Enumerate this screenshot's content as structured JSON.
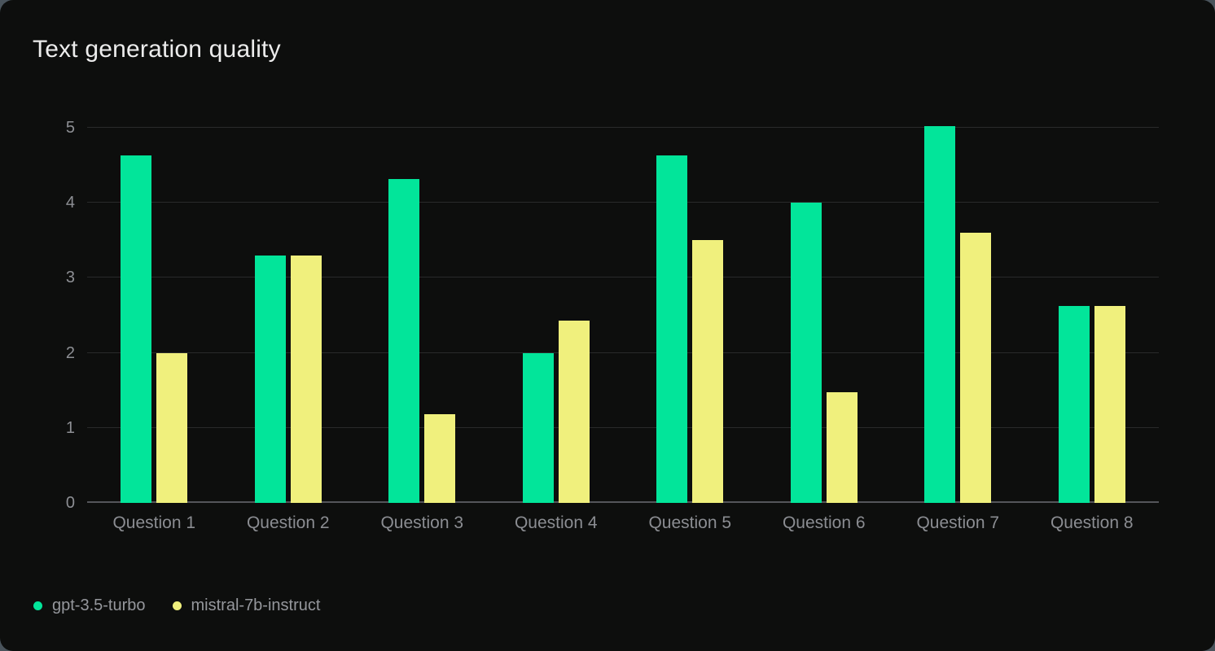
{
  "title": "Text generation quality",
  "colors": {
    "card_background": "#0d0e0d",
    "page_background": "#4a545c",
    "gridline": "#292a2a",
    "baseline": "#54555a",
    "axis_text": "#8d8f94",
    "title_text": "#ececec",
    "legend_text": "#95979c"
  },
  "chart_data": {
    "type": "bar",
    "title": "Text generation quality",
    "categories": [
      "Question 1",
      "Question 2",
      "Question 3",
      "Question 4",
      "Question 5",
      "Question 6",
      "Question 7",
      "Question 8"
    ],
    "series": [
      {
        "name": "gpt-3.5-turbo",
        "color": "#02e59a",
        "values": [
          4.63,
          3.3,
          4.32,
          2.0,
          4.63,
          4.0,
          5.02,
          2.63
        ]
      },
      {
        "name": "mistral-7b-instruct",
        "color": "#f0f07d",
        "values": [
          2.0,
          3.3,
          1.18,
          2.43,
          3.5,
          1.47,
          3.6,
          2.63
        ]
      }
    ],
    "xlabel": "",
    "ylabel": "",
    "ylim": [
      0,
      5
    ],
    "yticks": [
      "0",
      "1",
      "2",
      "3",
      "4",
      "5"
    ],
    "grid": true,
    "legend_position": "bottom-left"
  }
}
